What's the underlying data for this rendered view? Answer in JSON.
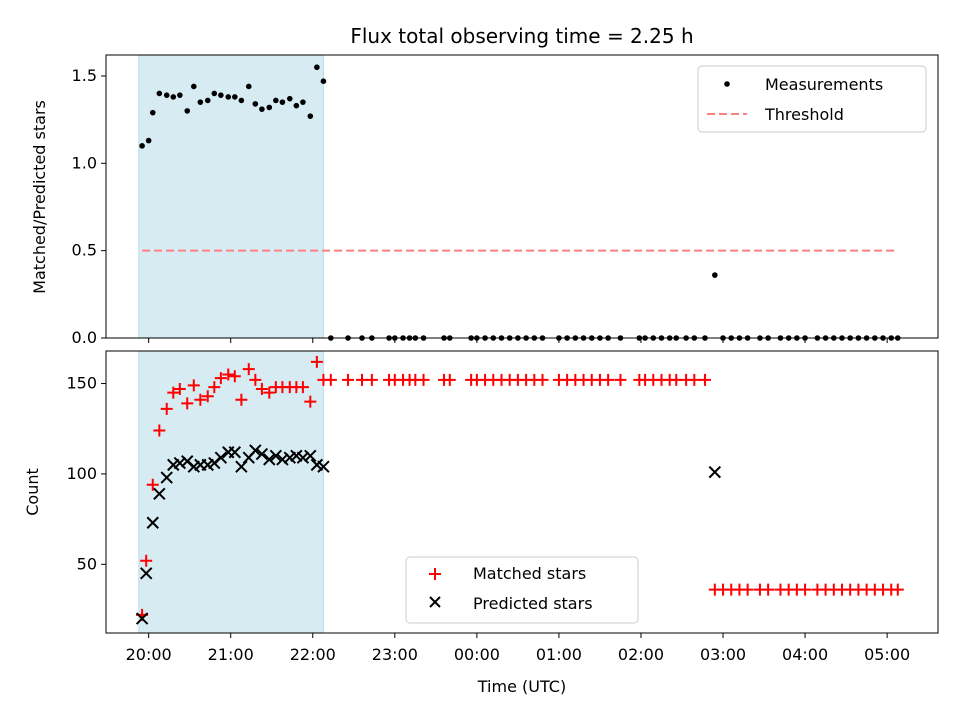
{
  "chart_data": {
    "type": "scatter",
    "title": "Flux total observing time = 2.25 h",
    "xlabel": "Time (UTC)",
    "x_ticks": [
      "20:00",
      "21:00",
      "22:00",
      "23:00",
      "00:00",
      "01:00",
      "02:00",
      "03:00",
      "04:00",
      "05:00"
    ],
    "x_range_hours": [
      19.48,
      29.62
    ],
    "shaded_interval_hours": [
      19.88,
      22.13
    ],
    "shade_color": "#add8e6",
    "panels": [
      {
        "ylabel": "Matched/Predicted stars",
        "ylim": [
          0,
          1.62
        ],
        "y_ticks": [
          "0.0",
          "0.5",
          "1.0",
          "1.5"
        ],
        "y_tick_values": [
          0,
          0.5,
          1.0,
          1.5
        ],
        "legend": "top-right",
        "series": [
          {
            "name": "Measurements",
            "marker": "dot",
            "color": "#000000",
            "points": [
              [
                19.92,
                1.1
              ],
              [
                20.0,
                1.13
              ],
              [
                20.05,
                1.29
              ],
              [
                20.13,
                1.4
              ],
              [
                20.22,
                1.39
              ],
              [
                20.3,
                1.38
              ],
              [
                20.38,
                1.39
              ],
              [
                20.47,
                1.3
              ],
              [
                20.55,
                1.44
              ],
              [
                20.63,
                1.35
              ],
              [
                20.72,
                1.36
              ],
              [
                20.8,
                1.4
              ],
              [
                20.88,
                1.39
              ],
              [
                20.97,
                1.38
              ],
              [
                21.05,
                1.38
              ],
              [
                21.13,
                1.36
              ],
              [
                21.22,
                1.44
              ],
              [
                21.3,
                1.34
              ],
              [
                21.38,
                1.31
              ],
              [
                21.47,
                1.32
              ],
              [
                21.55,
                1.36
              ],
              [
                21.63,
                1.35
              ],
              [
                21.72,
                1.37
              ],
              [
                21.8,
                1.33
              ],
              [
                21.88,
                1.35
              ],
              [
                21.97,
                1.27
              ],
              [
                22.05,
                1.55
              ],
              [
                22.13,
                1.47
              ],
              [
                22.22,
                0
              ],
              [
                22.43,
                0
              ],
              [
                22.6,
                0
              ],
              [
                22.72,
                0
              ],
              [
                22.93,
                0
              ],
              [
                23.0,
                0
              ],
              [
                23.1,
                0
              ],
              [
                23.18,
                0
              ],
              [
                23.25,
                0
              ],
              [
                23.35,
                0
              ],
              [
                23.6,
                0
              ],
              [
                23.67,
                0
              ],
              [
                23.93,
                0
              ],
              [
                24.0,
                0
              ],
              [
                24.1,
                0
              ],
              [
                24.2,
                0
              ],
              [
                24.3,
                0
              ],
              [
                24.4,
                0
              ],
              [
                24.5,
                0
              ],
              [
                24.6,
                0
              ],
              [
                24.7,
                0
              ],
              [
                24.8,
                0
              ],
              [
                25.0,
                0
              ],
              [
                25.1,
                0
              ],
              [
                25.2,
                0
              ],
              [
                25.3,
                0
              ],
              [
                25.4,
                0
              ],
              [
                25.5,
                0
              ],
              [
                25.6,
                0
              ],
              [
                25.75,
                0
              ],
              [
                25.98,
                0
              ],
              [
                26.05,
                0
              ],
              [
                26.15,
                0
              ],
              [
                26.25,
                0
              ],
              [
                26.35,
                0
              ],
              [
                26.43,
                0
              ],
              [
                26.55,
                0
              ],
              [
                26.65,
                0
              ],
              [
                26.78,
                0
              ],
              [
                26.9,
                0.36
              ],
              [
                27.0,
                0
              ],
              [
                27.1,
                0
              ],
              [
                27.2,
                0
              ],
              [
                27.3,
                0
              ],
              [
                27.45,
                0
              ],
              [
                27.55,
                0
              ],
              [
                27.7,
                0
              ],
              [
                27.8,
                0
              ],
              [
                27.9,
                0
              ],
              [
                28.0,
                0
              ],
              [
                28.15,
                0
              ],
              [
                28.25,
                0
              ],
              [
                28.35,
                0
              ],
              [
                28.45,
                0
              ],
              [
                28.55,
                0
              ],
              [
                28.65,
                0
              ],
              [
                28.75,
                0
              ],
              [
                28.85,
                0
              ],
              [
                28.95,
                0
              ],
              [
                29.05,
                0
              ],
              [
                29.13,
                0
              ]
            ]
          },
          {
            "name": "Threshold",
            "marker": "dashed-line",
            "color": "#ff7f7f",
            "points": [
              [
                19.92,
                0.5
              ],
              [
                29.13,
                0.5
              ]
            ]
          }
        ]
      },
      {
        "ylabel": "Count",
        "ylim": [
          12,
          168
        ],
        "y_ticks": [
          "50",
          "100",
          "150"
        ],
        "y_tick_values": [
          50,
          100,
          150
        ],
        "legend": "lower-center",
        "series": [
          {
            "name": "Matched stars",
            "marker": "plus",
            "color": "#ff0000",
            "points": [
              [
                19.92,
                22
              ],
              [
                19.97,
                52
              ],
              [
                20.05,
                94
              ],
              [
                20.13,
                124
              ],
              [
                20.22,
                136
              ],
              [
                20.3,
                145
              ],
              [
                20.38,
                147
              ],
              [
                20.47,
                139
              ],
              [
                20.55,
                149
              ],
              [
                20.63,
                141
              ],
              [
                20.72,
                143
              ],
              [
                20.8,
                148
              ],
              [
                20.88,
                153
              ],
              [
                20.97,
                155
              ],
              [
                21.05,
                154
              ],
              [
                21.13,
                141
              ],
              [
                21.22,
                158
              ],
              [
                21.3,
                152
              ],
              [
                21.38,
                147
              ],
              [
                21.47,
                145
              ],
              [
                21.55,
                148
              ],
              [
                21.63,
                148
              ],
              [
                21.72,
                148
              ],
              [
                21.8,
                148
              ],
              [
                21.88,
                148
              ],
              [
                21.97,
                140
              ],
              [
                22.05,
                162
              ],
              [
                22.13,
                152
              ],
              [
                22.22,
                152
              ],
              [
                22.43,
                152
              ],
              [
                22.6,
                152
              ],
              [
                22.72,
                152
              ],
              [
                22.93,
                152
              ],
              [
                23.0,
                152
              ],
              [
                23.1,
                152
              ],
              [
                23.18,
                152
              ],
              [
                23.25,
                152
              ],
              [
                23.35,
                152
              ],
              [
                23.6,
                152
              ],
              [
                23.67,
                152
              ],
              [
                23.93,
                152
              ],
              [
                24.0,
                152
              ],
              [
                24.1,
                152
              ],
              [
                24.2,
                152
              ],
              [
                24.3,
                152
              ],
              [
                24.4,
                152
              ],
              [
                24.5,
                152
              ],
              [
                24.6,
                152
              ],
              [
                24.7,
                152
              ],
              [
                24.8,
                152
              ],
              [
                25.0,
                152
              ],
              [
                25.1,
                152
              ],
              [
                25.2,
                152
              ],
              [
                25.3,
                152
              ],
              [
                25.4,
                152
              ],
              [
                25.5,
                152
              ],
              [
                25.6,
                152
              ],
              [
                25.75,
                152
              ],
              [
                25.98,
                152
              ],
              [
                26.05,
                152
              ],
              [
                26.15,
                152
              ],
              [
                26.25,
                152
              ],
              [
                26.35,
                152
              ],
              [
                26.43,
                152
              ],
              [
                26.55,
                152
              ],
              [
                26.65,
                152
              ],
              [
                26.78,
                152
              ],
              [
                26.9,
                36
              ],
              [
                27.0,
                36
              ],
              [
                27.1,
                36
              ],
              [
                27.2,
                36
              ],
              [
                27.3,
                36
              ],
              [
                27.45,
                36
              ],
              [
                27.55,
                36
              ],
              [
                27.7,
                36
              ],
              [
                27.8,
                36
              ],
              [
                27.9,
                36
              ],
              [
                28.0,
                36
              ],
              [
                28.15,
                36
              ],
              [
                28.25,
                36
              ],
              [
                28.35,
                36
              ],
              [
                28.45,
                36
              ],
              [
                28.55,
                36
              ],
              [
                28.65,
                36
              ],
              [
                28.75,
                36
              ],
              [
                28.85,
                36
              ],
              [
                28.95,
                36
              ],
              [
                29.05,
                36
              ],
              [
                29.13,
                36
              ]
            ]
          },
          {
            "name": "Predicted stars",
            "marker": "x",
            "color": "#000000",
            "points": [
              [
                19.92,
                20
              ],
              [
                19.97,
                45
              ],
              [
                20.05,
                73
              ],
              [
                20.13,
                89
              ],
              [
                20.22,
                98
              ],
              [
                20.3,
                105
              ],
              [
                20.38,
                106
              ],
              [
                20.47,
                107
              ],
              [
                20.55,
                104
              ],
              [
                20.63,
                105
              ],
              [
                20.72,
                105
              ],
              [
                20.8,
                106
              ],
              [
                20.88,
                109
              ],
              [
                20.97,
                112
              ],
              [
                21.05,
                112
              ],
              [
                21.13,
                104
              ],
              [
                21.22,
                109
              ],
              [
                21.3,
                113
              ],
              [
                21.38,
                111
              ],
              [
                21.47,
                108
              ],
              [
                21.55,
                110
              ],
              [
                21.63,
                108
              ],
              [
                21.72,
                109
              ],
              [
                21.8,
                110
              ],
              [
                21.88,
                109
              ],
              [
                21.97,
                110
              ],
              [
                22.05,
                105
              ],
              [
                22.13,
                104
              ],
              [
                26.9,
                101
              ]
            ]
          }
        ]
      }
    ]
  }
}
